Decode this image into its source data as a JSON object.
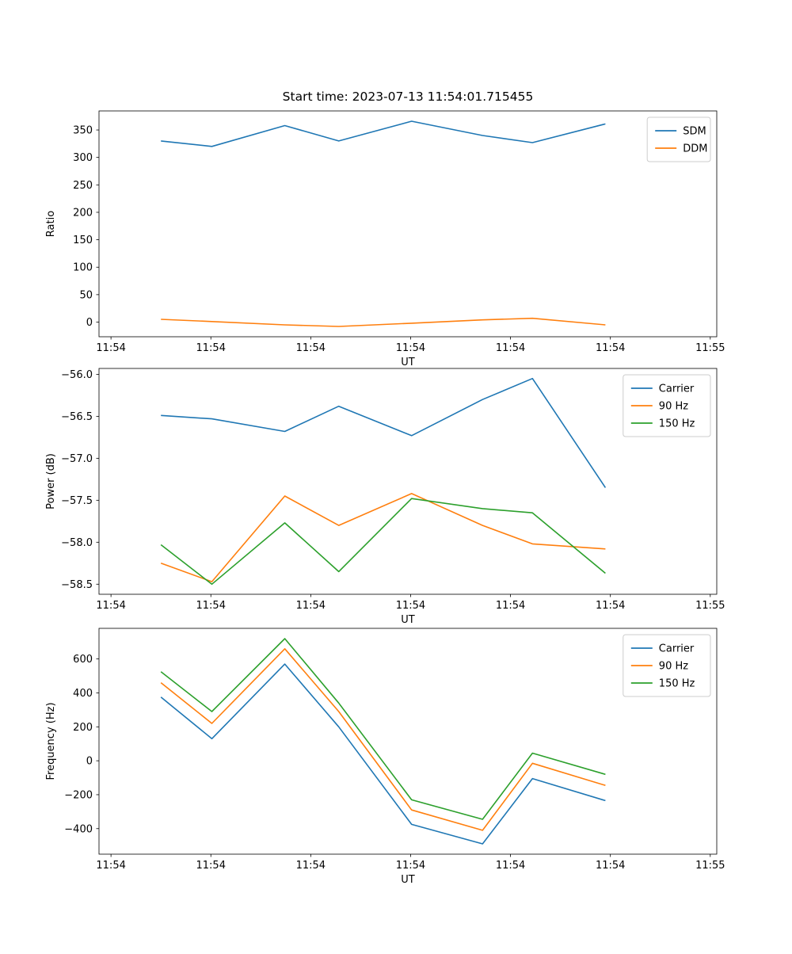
{
  "figure": {
    "background": "#ffffff",
    "title": "Start time: 2023-07-13 11:54:01.715455"
  },
  "chart_data": [
    {
      "type": "line",
      "title": "Start time: 2023-07-13 11:54:01.715455",
      "xlabel": "UT",
      "ylabel": "Ratio",
      "xlim": [
        -1.2,
        60.65
      ],
      "ylim": [
        -26.7,
        384.7
      ],
      "xticks": {
        "values": [
          0,
          10,
          20,
          30,
          40,
          50,
          60
        ],
        "labels": [
          "11:54",
          "11:54",
          "11:54",
          "11:54",
          "11:54",
          "11:54",
          "11:55"
        ]
      },
      "yticks": {
        "values": [
          0,
          50,
          100,
          150,
          200,
          250,
          300,
          350
        ],
        "labels": [
          "0",
          "50",
          "100",
          "150",
          "200",
          "250",
          "300",
          "350"
        ]
      },
      "x": [
        5.0,
        10.1,
        17.4,
        22.8,
        30.1,
        37.2,
        42.2,
        49.5
      ],
      "series": [
        {
          "name": "SDM",
          "color": "#1f77b4",
          "values": [
            330,
            320,
            358,
            330,
            366,
            340,
            327,
            361
          ]
        },
        {
          "name": "DDM",
          "color": "#ff7f0e",
          "values": [
            5,
            1,
            -5,
            -8,
            -2,
            4,
            7,
            -5
          ]
        }
      ],
      "legend": {
        "position": "upper right",
        "entries": [
          "SDM",
          "DDM"
        ]
      },
      "grid": false
    },
    {
      "type": "line",
      "title": "",
      "xlabel": "UT",
      "ylabel": "Power (dB)",
      "xlim": [
        -1.2,
        60.65
      ],
      "ylim": [
        -58.62,
        -55.93
      ],
      "xticks": {
        "values": [
          0,
          10,
          20,
          30,
          40,
          50,
          60
        ],
        "labels": [
          "11:54",
          "11:54",
          "11:54",
          "11:54",
          "11:54",
          "11:54",
          "11:55"
        ]
      },
      "yticks": {
        "values": [
          -58.5,
          -58.0,
          -57.5,
          -57.0,
          -56.5,
          -56.0
        ],
        "labels": [
          "−58.5",
          "−58.0",
          "−57.5",
          "−57.0",
          "−56.5",
          "−56.0"
        ]
      },
      "x": [
        5.0,
        10.1,
        17.4,
        22.8,
        30.1,
        37.2,
        42.2,
        49.5
      ],
      "series": [
        {
          "name": "Carrier",
          "color": "#1f77b4",
          "values": [
            -56.49,
            -56.53,
            -56.68,
            -56.38,
            -56.73,
            -56.3,
            -56.05,
            -57.35
          ]
        },
        {
          "name": "90 Hz",
          "color": "#ff7f0e",
          "values": [
            -58.25,
            -58.47,
            -57.45,
            -57.8,
            -57.42,
            -57.8,
            -58.02,
            -58.08
          ]
        },
        {
          "name": "150 Hz",
          "color": "#2ca02c",
          "values": [
            -58.03,
            -58.5,
            -57.77,
            -58.35,
            -57.48,
            -57.6,
            -57.65,
            -58.37
          ]
        }
      ],
      "legend": {
        "position": "upper right",
        "entries": [
          "Carrier",
          "90 Hz",
          "150 Hz"
        ]
      },
      "grid": false
    },
    {
      "type": "line",
      "title": "",
      "xlabel": "UT",
      "ylabel": "Frequency (Hz)",
      "xlim": [
        -1.2,
        60.65
      ],
      "ylim": [
        -550.5,
        780.5
      ],
      "xticks": {
        "values": [
          0,
          10,
          20,
          30,
          40,
          50,
          60
        ],
        "labels": [
          "11:54",
          "11:54",
          "11:54",
          "11:54",
          "11:54",
          "11:54",
          "11:55"
        ]
      },
      "yticks": {
        "values": [
          -400,
          -200,
          0,
          200,
          400,
          600
        ],
        "labels": [
          "−400",
          "−200",
          "0",
          "200",
          "400",
          "600"
        ]
      },
      "x": [
        5.0,
        10.1,
        17.4,
        22.8,
        30.1,
        37.2,
        42.2,
        49.5
      ],
      "series": [
        {
          "name": "Carrier",
          "color": "#1f77b4",
          "values": [
            375,
            130,
            570,
            200,
            -375,
            -490,
            -105,
            -235
          ]
        },
        {
          "name": "90 Hz",
          "color": "#ff7f0e",
          "values": [
            460,
            220,
            660,
            290,
            -290,
            -410,
            -15,
            -145
          ]
        },
        {
          "name": "150 Hz",
          "color": "#2ca02c",
          "values": [
            525,
            290,
            720,
            340,
            -230,
            -345,
            45,
            -80
          ]
        }
      ],
      "legend": {
        "position": "upper right",
        "entries": [
          "Carrier",
          "90 Hz",
          "150 Hz"
        ]
      },
      "grid": false
    }
  ]
}
